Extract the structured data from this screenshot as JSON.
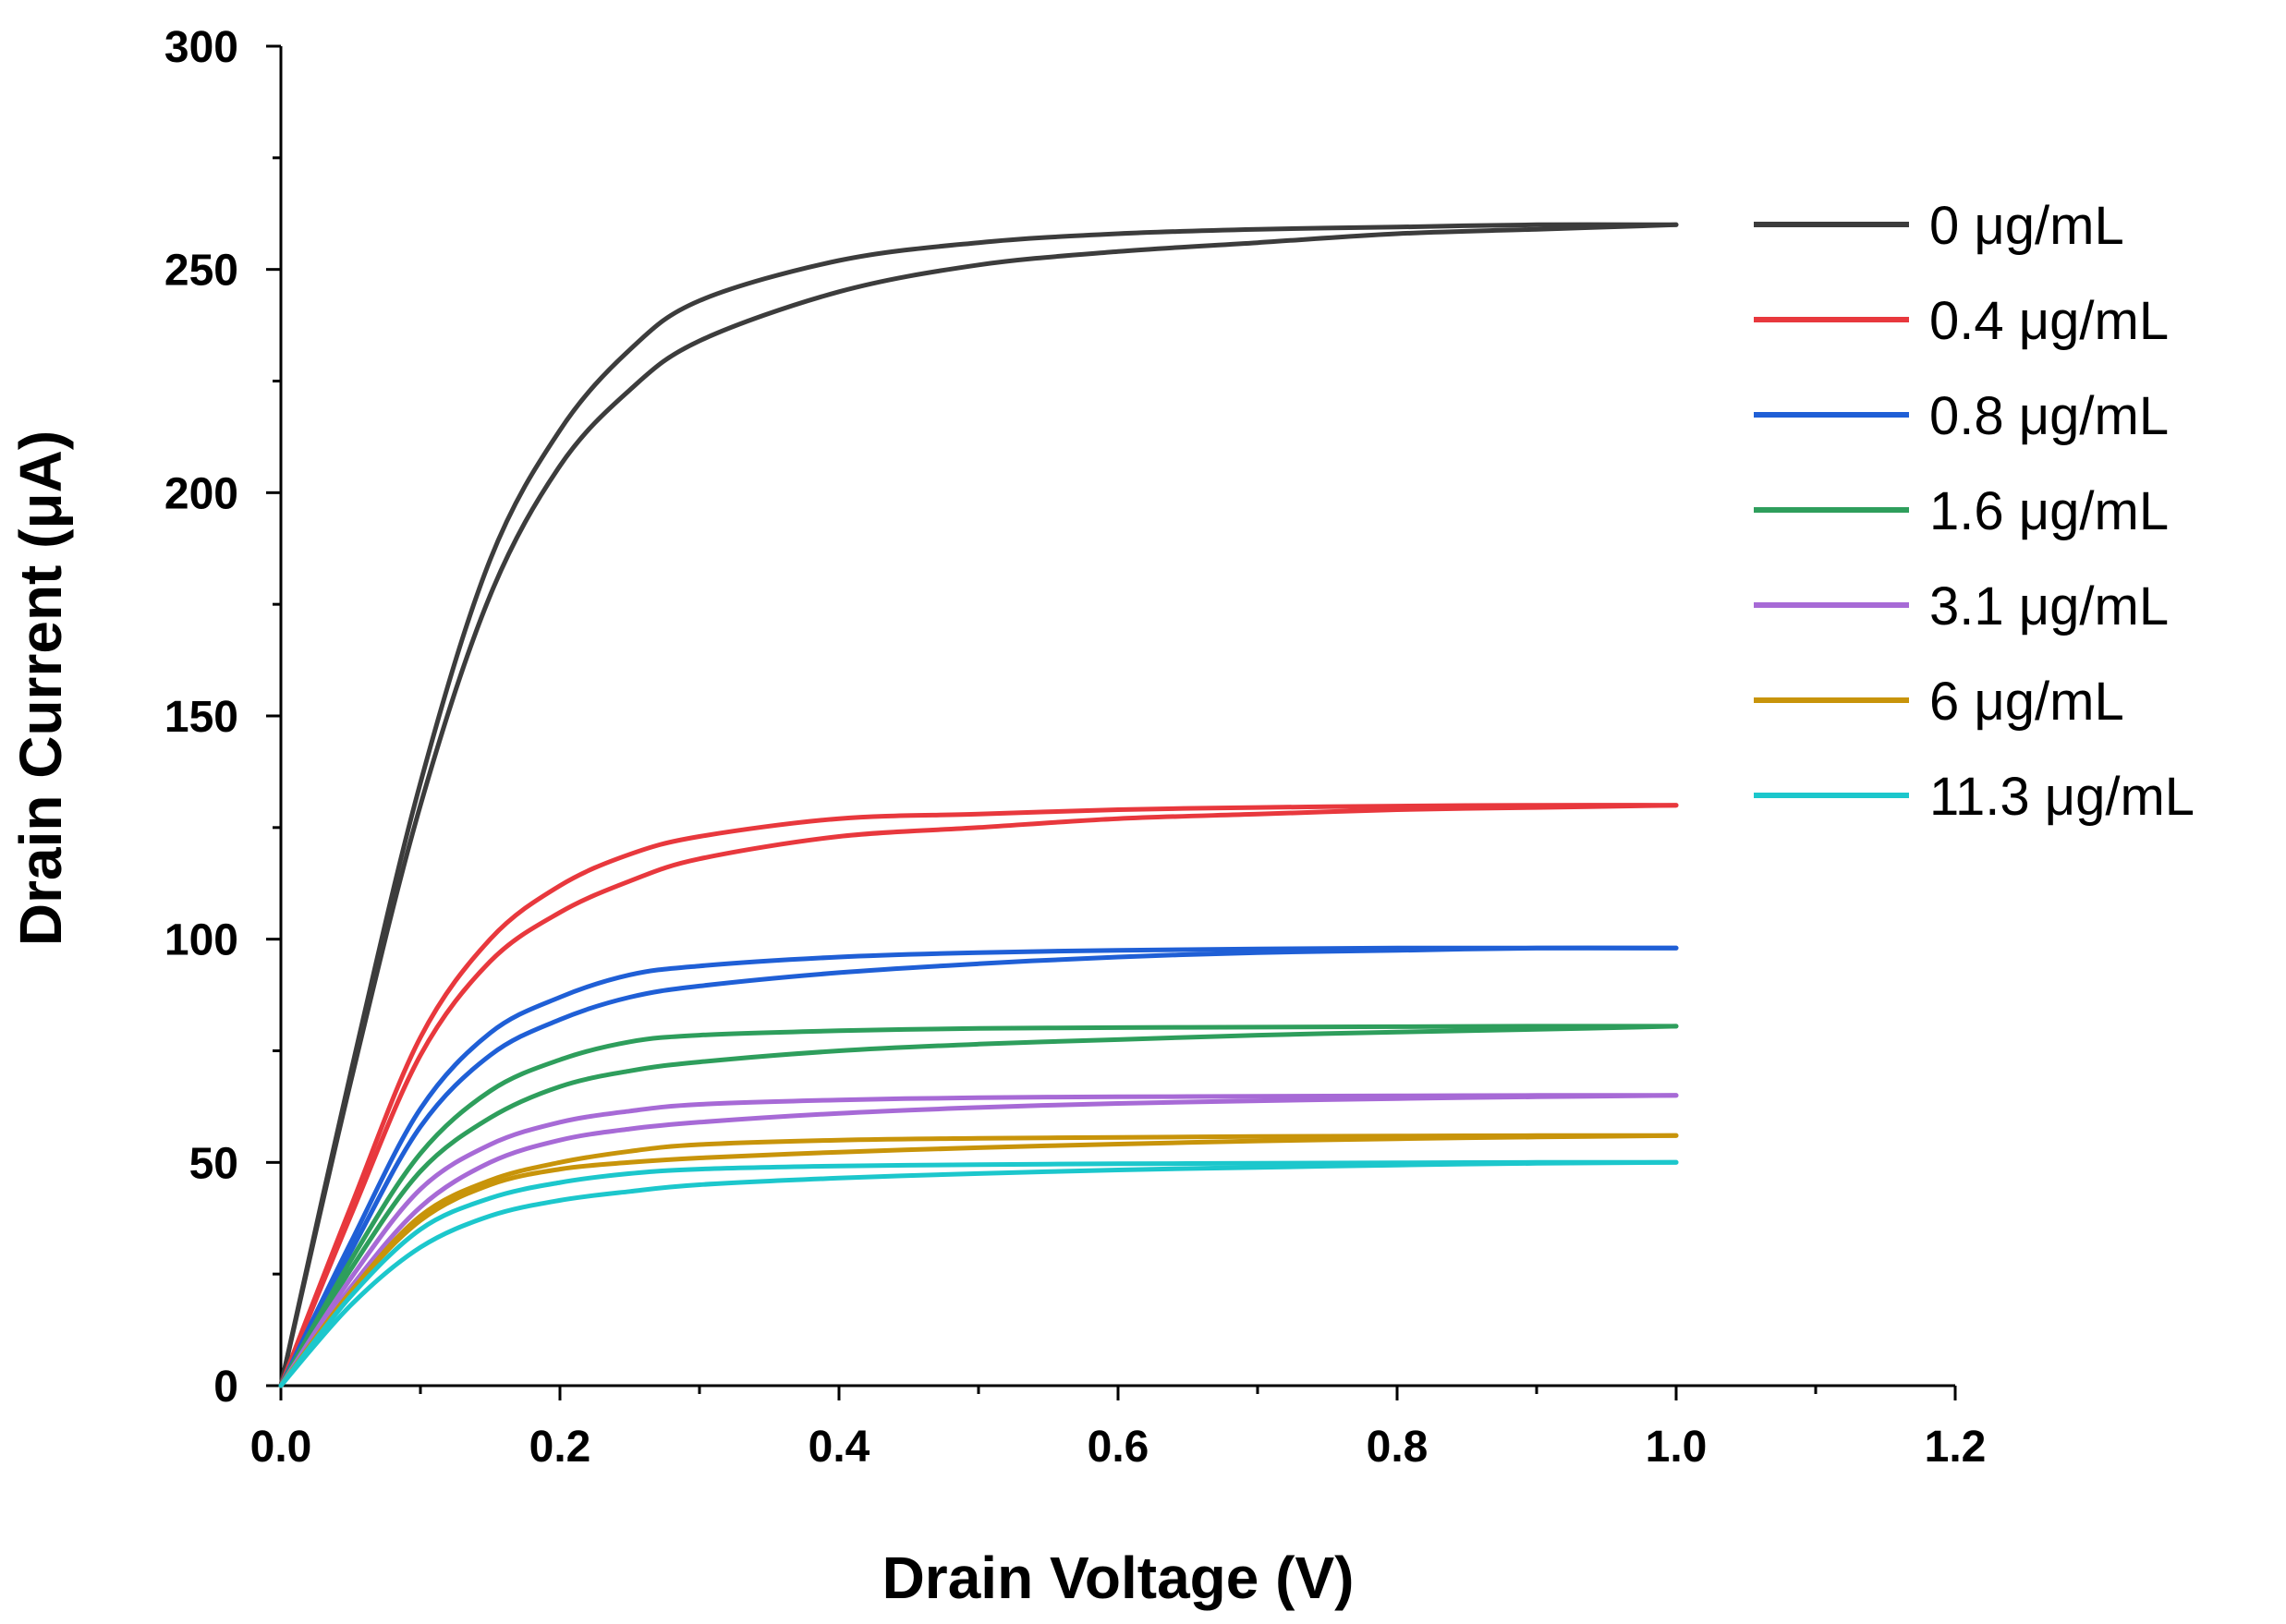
{
  "chart_data": {
    "type": "line",
    "title": "",
    "xlabel": "Drain Voltage (V)",
    "ylabel": "Drain Current (μA)",
    "xlim": [
      0,
      1.2
    ],
    "ylim": [
      0,
      300
    ],
    "x_ticks": [
      0.0,
      0.2,
      0.4,
      0.6,
      0.8,
      1.0,
      1.2
    ],
    "x_tick_labels": [
      "0.0",
      "0.2",
      "0.4",
      "0.6",
      "0.8",
      "1.0",
      "1.2"
    ],
    "y_ticks": [
      0,
      50,
      100,
      150,
      200,
      250,
      300
    ],
    "y_tick_labels": [
      "0",
      "50",
      "100",
      "150",
      "200",
      "250",
      "300"
    ],
    "grid": false,
    "legend_position": "right",
    "x": [
      0.0,
      0.05,
      0.1,
      0.15,
      0.2,
      0.25,
      0.3,
      0.4,
      0.5,
      0.6,
      0.7,
      0.8,
      0.9,
      1.0
    ],
    "series": [
      {
        "name": "0 μg/mL",
        "color": "#3c3c3c",
        "forward": [
          0,
          70,
          135,
          185,
          214,
          232,
          243,
          252,
          256,
          258,
          259,
          259.5,
          260,
          260
        ],
        "reverse": [
          0,
          68,
          130,
          177,
          206,
          223,
          234,
          245,
          251,
          254,
          256,
          258,
          259,
          260
        ]
      },
      {
        "name": "0.4 μg/mL",
        "color": "#e8383d",
        "forward": [
          0,
          40,
          78,
          100,
          112,
          119,
          123,
          127,
          128,
          129,
          129.5,
          129.8,
          130,
          130
        ],
        "reverse": [
          0,
          38,
          74,
          95,
          106,
          113,
          118,
          123,
          125,
          127,
          128,
          129,
          129.5,
          130
        ]
      },
      {
        "name": "0.8 μg/mL",
        "color": "#1f5fd6",
        "forward": [
          0,
          32,
          62,
          79,
          87,
          92,
          94,
          96,
          97,
          97.5,
          97.8,
          98,
          98,
          98
        ],
        "reverse": [
          0,
          30,
          58,
          74,
          82,
          87,
          89.5,
          92.5,
          94.5,
          96,
          97,
          97.5,
          98,
          98
        ]
      },
      {
        "name": "1.6 μg/mL",
        "color": "#2e9e5c",
        "forward": [
          0,
          28,
          52,
          66,
          73,
          77,
          78.5,
          79.5,
          80,
          80.2,
          80.3,
          80.4,
          80.5,
          80.5
        ],
        "reverse": [
          0,
          26,
          48,
          60,
          67,
          70.5,
          72.5,
          75,
          76.5,
          77.5,
          78.5,
          79.2,
          79.8,
          80.5
        ]
      },
      {
        "name": "3.1 μg/mL",
        "color": "#a76ad6",
        "forward": [
          0,
          24,
          44,
          54,
          59,
          61.5,
          63,
          64,
          64.5,
          64.7,
          64.8,
          64.9,
          65,
          65
        ],
        "reverse": [
          0,
          22,
          40,
          50,
          55,
          57.5,
          59,
          61,
          62.3,
          63.2,
          63.8,
          64.3,
          64.7,
          65
        ]
      },
      {
        "name": "6 μg/mL",
        "color": "#c8940a",
        "forward": [
          0,
          21,
          38,
          46,
          50,
          52.5,
          54,
          55,
          55.4,
          55.6,
          55.8,
          55.9,
          56,
          56
        ],
        "reverse": [
          0,
          21,
          37,
          45,
          48.5,
          50,
          51,
          52.3,
          53.3,
          54.1,
          54.8,
          55.3,
          55.7,
          56
        ]
      },
      {
        "name": "11.3 μg/mL",
        "color": "#1cc7cc",
        "forward": [
          0,
          20,
          35,
          42,
          45.5,
          47.5,
          48.5,
          49.2,
          49.5,
          49.7,
          49.8,
          49.9,
          50,
          50
        ],
        "reverse": [
          0,
          18,
          31,
          38,
          41.5,
          43.5,
          45,
          46.5,
          47.5,
          48.3,
          48.9,
          49.4,
          49.8,
          50
        ]
      }
    ]
  }
}
